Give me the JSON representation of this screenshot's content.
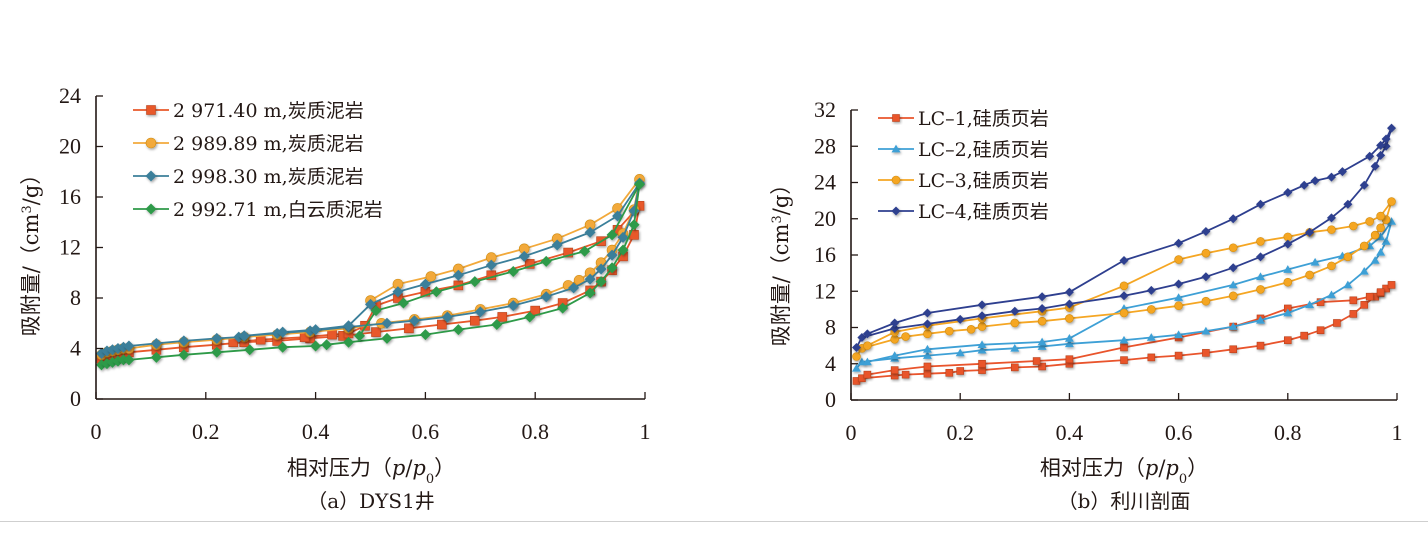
{
  "chart_data": [
    {
      "id": "a",
      "type": "line",
      "caption": "（a）DYS1井",
      "xlabel": "相对压力（p/p0）",
      "xlabel_parts": {
        "prefix": "相对压力（",
        "p": "p",
        "slash": "/",
        "p0": "p",
        "sub": "0",
        "suffix": "）"
      },
      "ylabel": "吸附量/（cm3/g）",
      "ylabel_parts": {
        "prefix": "吸附量/（cm",
        "sup": "3",
        "suffix": "/g）"
      },
      "xlim": [
        0,
        1
      ],
      "ylim": [
        0,
        24
      ],
      "xticks": [
        0,
        0.2,
        0.4,
        0.6,
        0.8,
        1
      ],
      "xtick_labels": [
        "0",
        "0.2",
        "0.4",
        "0.6",
        "0.8",
        "1"
      ],
      "yticks": [
        0,
        4,
        8,
        12,
        16,
        20,
        24
      ],
      "ytick_labels": [
        "0",
        "4",
        "8",
        "12",
        "16",
        "20",
        "24"
      ],
      "grid": false,
      "legend_position": "top-left",
      "series": [
        {
          "name": "2 971.40 m,炭质泥岩",
          "color": "#e8582a",
          "marker": "square",
          "x": [
            0.01,
            0.02,
            0.03,
            0.04,
            0.05,
            0.06,
            0.11,
            0.16,
            0.22,
            0.27,
            0.33,
            0.39,
            0.45,
            0.51,
            0.57,
            0.63,
            0.69,
            0.74,
            0.8,
            0.85,
            0.9,
            0.92,
            0.94,
            0.96,
            0.98,
            0.99,
            0.95,
            0.92,
            0.86,
            0.79,
            0.72,
            0.66,
            0.6,
            0.55,
            0.51,
            0.49,
            0.46,
            0.43,
            0.38,
            0.3,
            0.25
          ],
          "y": [
            3.2,
            3.4,
            3.5,
            3.6,
            3.6,
            3.7,
            3.9,
            4.1,
            4.3,
            4.5,
            4.6,
            4.8,
            5.0,
            5.3,
            5.6,
            5.9,
            6.2,
            6.5,
            7.0,
            7.6,
            8.6,
            9.3,
            10.2,
            11.3,
            13.0,
            15.3,
            13.4,
            12.5,
            11.6,
            10.7,
            9.8,
            9.0,
            8.5,
            8.0,
            7.4,
            5.8,
            5.2,
            5.1,
            4.9,
            4.7,
            4.5
          ]
        },
        {
          "name": "2 989.89 m,炭质泥岩",
          "color": "#f2a93b",
          "marker": "circle",
          "x": [
            0.01,
            0.02,
            0.03,
            0.04,
            0.05,
            0.06,
            0.11,
            0.16,
            0.22,
            0.27,
            0.33,
            0.39,
            0.46,
            0.52,
            0.58,
            0.64,
            0.7,
            0.76,
            0.82,
            0.86,
            0.88,
            0.9,
            0.92,
            0.94,
            0.96,
            0.98,
            0.99,
            0.95,
            0.9,
            0.84,
            0.78,
            0.72,
            0.66,
            0.61,
            0.55,
            0.5
          ],
          "y": [
            3.5,
            3.7,
            3.8,
            3.9,
            4.0,
            4.0,
            4.3,
            4.5,
            4.7,
            4.9,
            5.1,
            5.3,
            5.6,
            6.0,
            6.3,
            6.6,
            7.1,
            7.6,
            8.3,
            9.0,
            9.4,
            10.0,
            10.8,
            11.8,
            13.1,
            15.0,
            17.4,
            15.1,
            13.8,
            12.7,
            11.9,
            11.2,
            10.3,
            9.7,
            9.1,
            7.8
          ]
        },
        {
          "name": "2 998.30 m,炭质泥岩",
          "color": "#3b7f9a",
          "marker": "diamond",
          "x": [
            0.01,
            0.02,
            0.03,
            0.04,
            0.05,
            0.06,
            0.11,
            0.16,
            0.22,
            0.26,
            0.27,
            0.33,
            0.39,
            0.46,
            0.53,
            0.58,
            0.64,
            0.7,
            0.76,
            0.82,
            0.87,
            0.9,
            0.92,
            0.94,
            0.96,
            0.98,
            0.99,
            0.95,
            0.9,
            0.84,
            0.78,
            0.72,
            0.66,
            0.6,
            0.55,
            0.5,
            0.46,
            0.4,
            0.34,
            0.27
          ],
          "y": [
            3.6,
            3.8,
            3.9,
            4.0,
            4.1,
            4.2,
            4.4,
            4.6,
            4.8,
            4.9,
            5.0,
            5.2,
            5.4,
            5.7,
            6.0,
            6.2,
            6.5,
            6.9,
            7.4,
            8.1,
            8.8,
            9.5,
            10.3,
            11.4,
            12.8,
            14.9,
            17.1,
            14.5,
            13.2,
            12.2,
            11.3,
            10.6,
            9.8,
            9.1,
            8.5,
            7.5,
            5.8,
            5.5,
            5.3,
            5.0
          ]
        },
        {
          "name": "2 992.71 m,白云质泥岩",
          "color": "#2e9a48",
          "marker": "diamond",
          "x": [
            0.01,
            0.02,
            0.03,
            0.04,
            0.05,
            0.06,
            0.11,
            0.16,
            0.22,
            0.28,
            0.34,
            0.4,
            0.42,
            0.46,
            0.53,
            0.6,
            0.66,
            0.73,
            0.79,
            0.85,
            0.9,
            0.92,
            0.94,
            0.96,
            0.98,
            0.99,
            0.94,
            0.89,
            0.82,
            0.76,
            0.69,
            0.62,
            0.56,
            0.51,
            0.48
          ],
          "y": [
            2.7,
            2.8,
            2.9,
            3.0,
            3.1,
            3.1,
            3.3,
            3.5,
            3.7,
            3.9,
            4.1,
            4.2,
            4.3,
            4.5,
            4.8,
            5.1,
            5.5,
            5.9,
            6.5,
            7.2,
            8.4,
            9.3,
            10.4,
            11.8,
            13.8,
            17.0,
            13.0,
            11.7,
            10.9,
            10.1,
            9.3,
            8.5,
            7.6,
            7.0,
            5.0
          ]
        }
      ]
    },
    {
      "id": "b",
      "type": "line",
      "caption": "（b）利川剖面",
      "xlabel": "相对压力（p/p0）",
      "xlabel_parts": {
        "prefix": "相对压力（",
        "p": "p",
        "slash": "/",
        "p0": "p",
        "sub": "0",
        "suffix": "）"
      },
      "ylabel": "吸附量/（cm3/g）",
      "ylabel_parts": {
        "prefix": "吸附量/（cm",
        "sup": "3",
        "suffix": "/g）"
      },
      "xlim": [
        0,
        1
      ],
      "ylim": [
        0,
        32
      ],
      "xticks": [
        0,
        0.2,
        0.4,
        0.6,
        0.8,
        1
      ],
      "xtick_labels": [
        "0",
        "0.2",
        "0.4",
        "0.6",
        "0.8",
        "1"
      ],
      "yticks": [
        0,
        4,
        8,
        12,
        16,
        20,
        24,
        28,
        32
      ],
      "ytick_labels": [
        "0",
        "4",
        "8",
        "12",
        "16",
        "20",
        "24",
        "28",
        "32"
      ],
      "grid": false,
      "legend_position": "top-left",
      "series": [
        {
          "name": "LC–1,硅质页岩",
          "color": "#e9542c",
          "marker": "square",
          "x": [
            0.01,
            0.02,
            0.08,
            0.1,
            0.14,
            0.18,
            0.2,
            0.24,
            0.3,
            0.35,
            0.4,
            0.5,
            0.55,
            0.6,
            0.65,
            0.7,
            0.75,
            0.8,
            0.83,
            0.86,
            0.89,
            0.92,
            0.94,
            0.96,
            0.97,
            0.98,
            0.99,
            0.97,
            0.95,
            0.92,
            0.86,
            0.8,
            0.75,
            0.7,
            0.6,
            0.5,
            0.4,
            0.34,
            0.24,
            0.14,
            0.08,
            0.03
          ],
          "y": [
            2.1,
            2.4,
            2.7,
            2.8,
            2.9,
            3.0,
            3.2,
            3.3,
            3.6,
            3.7,
            4.0,
            4.4,
            4.7,
            4.9,
            5.2,
            5.6,
            6.0,
            6.6,
            7.1,
            7.7,
            8.5,
            9.5,
            10.5,
            11.4,
            11.8,
            12.3,
            12.7,
            11.9,
            11.4,
            11.0,
            10.8,
            10.1,
            9.0,
            8.1,
            6.9,
            5.8,
            4.5,
            4.3,
            4.0,
            3.7,
            3.3,
            2.8
          ]
        },
        {
          "name": "LC–2,硅质页岩",
          "color": "#3ea0d6",
          "marker": "triangle",
          "x": [
            0.01,
            0.02,
            0.08,
            0.14,
            0.2,
            0.24,
            0.3,
            0.35,
            0.4,
            0.5,
            0.55,
            0.6,
            0.65,
            0.7,
            0.75,
            0.8,
            0.84,
            0.88,
            0.91,
            0.94,
            0.96,
            0.97,
            0.98,
            0.99,
            0.97,
            0.95,
            0.9,
            0.85,
            0.8,
            0.75,
            0.7,
            0.6,
            0.5,
            0.4,
            0.35,
            0.24,
            0.14,
            0.08,
            0.03
          ],
          "y": [
            3.5,
            4.2,
            4.6,
            4.9,
            5.2,
            5.5,
            5.7,
            5.9,
            6.2,
            6.6,
            6.9,
            7.2,
            7.6,
            8.1,
            8.8,
            9.6,
            10.5,
            11.6,
            12.7,
            14.2,
            15.4,
            16.3,
            17.5,
            19.7,
            18.0,
            17.0,
            15.9,
            15.2,
            14.4,
            13.6,
            12.7,
            11.3,
            10.1,
            6.8,
            6.4,
            6.1,
            5.6,
            4.9,
            4.2
          ]
        },
        {
          "name": "LC–3,硅质页岩",
          "color": "#f5a623",
          "marker": "circle",
          "x": [
            0.01,
            0.02,
            0.08,
            0.1,
            0.14,
            0.18,
            0.22,
            0.24,
            0.3,
            0.35,
            0.4,
            0.5,
            0.55,
            0.6,
            0.65,
            0.7,
            0.75,
            0.8,
            0.84,
            0.88,
            0.91,
            0.94,
            0.96,
            0.97,
            0.98,
            0.99,
            0.97,
            0.95,
            0.92,
            0.88,
            0.84,
            0.8,
            0.75,
            0.7,
            0.65,
            0.6,
            0.5,
            0.4,
            0.35,
            0.24,
            0.14,
            0.08,
            0.03
          ],
          "y": [
            4.8,
            5.7,
            6.7,
            7.0,
            7.3,
            7.6,
            7.8,
            8.1,
            8.5,
            8.7,
            9.0,
            9.6,
            10.0,
            10.4,
            10.9,
            11.5,
            12.2,
            13.0,
            13.8,
            14.8,
            15.8,
            17.0,
            18.2,
            19.0,
            19.9,
            21.9,
            20.3,
            19.7,
            19.2,
            18.8,
            18.5,
            18.0,
            17.5,
            16.8,
            16.2,
            15.5,
            12.6,
            10.2,
            9.8,
            9.0,
            8.2,
            7.5,
            6.0
          ]
        },
        {
          "name": "LC–4,硅质页岩",
          "color": "#2e3f8f",
          "marker": "diamond",
          "x": [
            0.01,
            0.02,
            0.08,
            0.14,
            0.2,
            0.24,
            0.3,
            0.35,
            0.4,
            0.5,
            0.55,
            0.6,
            0.65,
            0.7,
            0.75,
            0.8,
            0.84,
            0.88,
            0.91,
            0.94,
            0.96,
            0.97,
            0.98,
            0.99,
            0.98,
            0.97,
            0.95,
            0.9,
            0.88,
            0.85,
            0.83,
            0.8,
            0.75,
            0.7,
            0.65,
            0.6,
            0.5,
            0.4,
            0.35,
            0.24,
            0.14,
            0.08,
            0.03
          ],
          "y": [
            5.8,
            6.9,
            7.9,
            8.4,
            8.9,
            9.3,
            9.8,
            10.1,
            10.6,
            11.5,
            12.1,
            12.8,
            13.6,
            14.6,
            15.8,
            17.2,
            18.5,
            20.1,
            21.6,
            23.7,
            25.8,
            27.0,
            28.0,
            30.0,
            28.8,
            28.1,
            26.9,
            25.2,
            24.6,
            24.2,
            23.7,
            22.9,
            21.6,
            20.0,
            18.6,
            17.3,
            15.4,
            11.9,
            11.4,
            10.5,
            9.6,
            8.5,
            7.3
          ]
        }
      ]
    }
  ]
}
